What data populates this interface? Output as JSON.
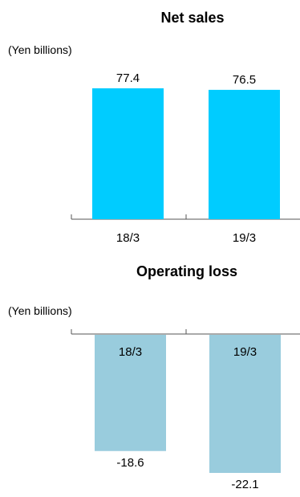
{
  "chart_data": [
    {
      "type": "bar",
      "title": "Net sales",
      "unit_label": "(Yen billions)",
      "categories": [
        "18/3",
        "19/3"
      ],
      "values": [
        77.4,
        76.5
      ],
      "value_labels": [
        "77.4",
        "76.5"
      ],
      "xlabel": "",
      "ylabel": "",
      "ylim": [
        0,
        77.4
      ],
      "grid": false,
      "legend": "none",
      "bar_color": "#00ccff"
    },
    {
      "type": "bar",
      "title": "Operating loss",
      "unit_label": "(Yen billions)",
      "categories": [
        "18/3",
        "19/3"
      ],
      "values": [
        -18.6,
        -22.1
      ],
      "value_labels": [
        "-18.6",
        "-22.1"
      ],
      "xlabel": "",
      "ylabel": "",
      "ylim": [
        -22.1,
        0
      ],
      "grid": false,
      "legend": "none",
      "bar_color": "#99ccdd"
    }
  ]
}
